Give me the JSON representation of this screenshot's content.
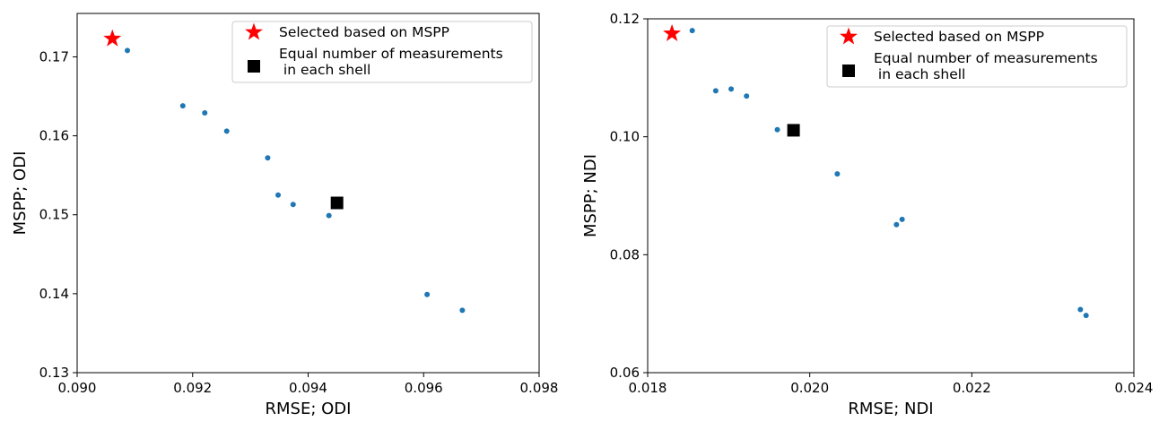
{
  "chart_data": [
    {
      "type": "scatter",
      "xlabel": "RMSE; ODI",
      "ylabel": "MSPP; ODI",
      "xlim": [
        0.09,
        0.098
      ],
      "ylim": [
        0.13,
        0.1755
      ],
      "xticks": [
        "0.090",
        "0.092",
        "0.094",
        "0.096",
        "0.098"
      ],
      "xtick_values": [
        0.09,
        0.092,
        0.094,
        0.096,
        0.098
      ],
      "yticks": [
        "0.13",
        "0.14",
        "0.15",
        "0.16",
        "0.17"
      ],
      "ytick_values": [
        0.13,
        0.14,
        0.15,
        0.16,
        0.17
      ],
      "grid": false,
      "legend_placement": "top-right",
      "series": [
        {
          "marker": "dot",
          "color": "#1f77b4",
          "points": [
            [
              0.09087,
              0.1708
            ],
            [
              0.09183,
              0.1638
            ],
            [
              0.09221,
              0.1629
            ],
            [
              0.09259,
              0.1606
            ],
            [
              0.0933,
              0.1572
            ],
            [
              0.09348,
              0.1525
            ],
            [
              0.09374,
              0.1513
            ],
            [
              0.09436,
              0.1499
            ],
            [
              0.09606,
              0.1399
            ],
            [
              0.09667,
              0.1379
            ]
          ]
        },
        {
          "name": "Selected based on MSPP",
          "marker": "star",
          "color": "#ff0000",
          "points": [
            [
              0.09061,
              0.1723
            ]
          ]
        },
        {
          "name": "Equal number of measurements\n in each shell",
          "marker": "square",
          "color": "#000000",
          "points": [
            [
              0.0945,
              0.1515
            ]
          ]
        }
      ]
    },
    {
      "type": "scatter",
      "xlabel": "RMSE; NDI",
      "ylabel": "MSPP; NDI",
      "xlim": [
        0.018,
        0.024
      ],
      "ylim": [
        0.06,
        0.12
      ],
      "xticks": [
        "0.018",
        "0.020",
        "0.022",
        "0.024"
      ],
      "xtick_values": [
        0.018,
        0.02,
        0.022,
        0.024
      ],
      "yticks": [
        "0.06",
        "0.08",
        "0.10",
        "0.12"
      ],
      "ytick_values": [
        0.06,
        0.08,
        0.1,
        0.12
      ],
      "grid": false,
      "legend_placement": "top-right",
      "series": [
        {
          "marker": "dot",
          "color": "#1f77b4",
          "points": [
            [
              0.01855,
              0.118
            ],
            [
              0.01884,
              0.1078
            ],
            [
              0.01903,
              0.1081
            ],
            [
              0.01922,
              0.1069
            ],
            [
              0.0196,
              0.1012
            ],
            [
              0.02034,
              0.0937
            ],
            [
              0.02107,
              0.0851
            ],
            [
              0.02114,
              0.086
            ],
            [
              0.02334,
              0.0707
            ],
            [
              0.02341,
              0.0697
            ]
          ]
        },
        {
          "name": "Selected based on MSPP",
          "marker": "star",
          "color": "#ff0000",
          "points": [
            [
              0.0183,
              0.1175
            ]
          ]
        },
        {
          "name": "Equal number of measurements\n in each shell",
          "marker": "square",
          "color": "#000000",
          "points": [
            [
              0.0198,
              0.1011
            ]
          ]
        }
      ]
    }
  ]
}
